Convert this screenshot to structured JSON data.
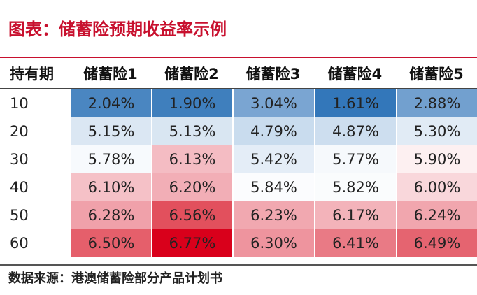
{
  "title": "图表：储蓄险预期收益率示例",
  "table": {
    "header": [
      "持有期",
      "储蓄险1",
      "储蓄险2",
      "储蓄险3",
      "储蓄险4",
      "储蓄险5"
    ],
    "rows": [
      {
        "period": "10",
        "cells": [
          {
            "text": "2.04%",
            "bg": "#4a86c1"
          },
          {
            "text": "1.90%",
            "bg": "#3f7fbd"
          },
          {
            "text": "3.04%",
            "bg": "#7aa5d2"
          },
          {
            "text": "1.61%",
            "bg": "#3377ba"
          },
          {
            "text": "2.88%",
            "bg": "#72a0cf"
          }
        ]
      },
      {
        "period": "20",
        "cells": [
          {
            "text": "5.15%",
            "bg": "#dbe7f3"
          },
          {
            "text": "5.13%",
            "bg": "#d9e6f2"
          },
          {
            "text": "4.79%",
            "bg": "#c9dcee"
          },
          {
            "text": "4.87%",
            "bg": "#cddeef"
          },
          {
            "text": "5.30%",
            "bg": "#e1ebf5"
          }
        ]
      },
      {
        "period": "30",
        "cells": [
          {
            "text": "5.78%",
            "bg": "#f7fafd"
          },
          {
            "text": "6.13%",
            "bg": "#f4bcc3"
          },
          {
            "text": "5.42%",
            "bg": "#e4edf7"
          },
          {
            "text": "5.77%",
            "bg": "#f6f9fc"
          },
          {
            "text": "5.90%",
            "bg": "#fdf0f1"
          }
        ]
      },
      {
        "period": "40",
        "cells": [
          {
            "text": "6.10%",
            "bg": "#f5c1c7"
          },
          {
            "text": "6.20%",
            "bg": "#f2aeb6"
          },
          {
            "text": "5.84%",
            "bg": "#fbfcfe"
          },
          {
            "text": "5.82%",
            "bg": "#fafcfd"
          },
          {
            "text": "6.00%",
            "bg": "#f9d7db"
          }
        ]
      },
      {
        "period": "50",
        "cells": [
          {
            "text": "6.28%",
            "bg": "#f0a1aa"
          },
          {
            "text": "6.56%",
            "bg": "#e2505d"
          },
          {
            "text": "6.23%",
            "bg": "#f1a8b0"
          },
          {
            "text": "6.17%",
            "bg": "#f3b3ba"
          },
          {
            "text": "6.24%",
            "bg": "#f1a6ae"
          }
        ]
      },
      {
        "period": "60",
        "cells": [
          {
            "text": "6.50%",
            "bg": "#e55f6b"
          },
          {
            "text": "6.77%",
            "bg": "#d9001b"
          },
          {
            "text": "6.30%",
            "bg": "#ee949e"
          },
          {
            "text": "6.41%",
            "bg": "#e97a85"
          },
          {
            "text": "6.49%",
            "bg": "#e56470"
          }
        ]
      }
    ]
  },
  "source": "数据来源：港澳储蓄险部分产品计划书",
  "colors": {
    "title": "#c8102e",
    "low": "#3377ba",
    "mid": "#ffffff",
    "high": "#d9001b"
  }
}
